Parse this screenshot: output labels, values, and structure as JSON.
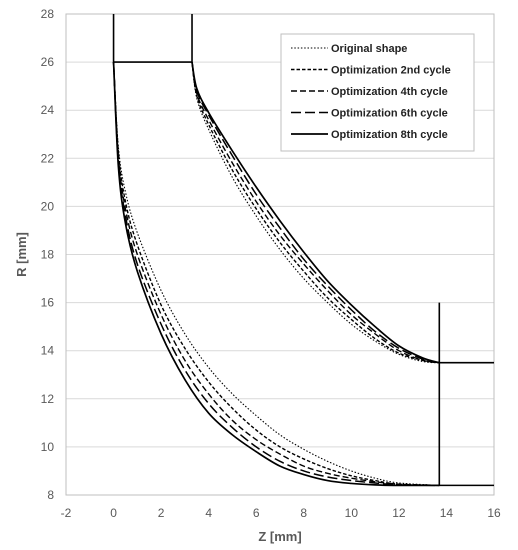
{
  "chart_data": {
    "type": "line",
    "xlabel": "Z [mm]",
    "ylabel": "R [mm]",
    "xlim": [
      -2,
      16
    ],
    "ylim": [
      8,
      28
    ],
    "x_ticks": [
      -2,
      0,
      2,
      4,
      6,
      8,
      10,
      12,
      14,
      16
    ],
    "y_ticks": [
      8,
      10,
      12,
      14,
      16,
      18,
      20,
      22,
      24,
      26,
      28
    ],
    "grid": "horizontal",
    "legend_position": "top-right",
    "colors": {
      "line": "#000000",
      "grid": "#d9d9d9",
      "frame": "#bfbfbf",
      "tick_text": "#595959"
    },
    "boundary": {
      "name": "",
      "segments": [
        [
          [
            0,
            28
          ],
          [
            0,
            26
          ],
          [
            3.3,
            26
          ],
          [
            3.3,
            28
          ]
        ],
        [
          [
            13.7,
            16.0
          ],
          [
            13.7,
            8.4
          ],
          [
            16,
            8.4
          ]
        ],
        [
          [
            13.7,
            13.5
          ],
          [
            16,
            13.5
          ]
        ]
      ]
    },
    "series": [
      {
        "name": "Original shape",
        "style": "dotted",
        "inner": [
          [
            0,
            26
          ],
          [
            0.2,
            22.5
          ],
          [
            0.5,
            20.6
          ],
          [
            1,
            18.9
          ],
          [
            2,
            16.5
          ],
          [
            3,
            14.7
          ],
          [
            4,
            13.3
          ],
          [
            5,
            12.2
          ],
          [
            6,
            11.3
          ],
          [
            7,
            10.5
          ],
          [
            8,
            9.9
          ],
          [
            9,
            9.4
          ],
          [
            10,
            9.0
          ],
          [
            11,
            8.7
          ],
          [
            12,
            8.5
          ],
          [
            13.7,
            8.4
          ]
        ],
        "outer": [
          [
            3.3,
            26
          ],
          [
            3.5,
            24.5
          ],
          [
            4,
            23.2
          ],
          [
            5,
            21.2
          ],
          [
            6,
            19.6
          ],
          [
            7,
            18.2
          ],
          [
            8,
            17.0
          ],
          [
            9,
            16.0
          ],
          [
            10,
            15.1
          ],
          [
            11,
            14.4
          ],
          [
            12,
            13.85
          ],
          [
            13,
            13.55
          ],
          [
            13.7,
            13.5
          ]
        ]
      },
      {
        "name": "Optimization 2nd cycle",
        "style": "short-dash",
        "inner": [
          [
            0,
            26
          ],
          [
            0.2,
            22.3
          ],
          [
            0.5,
            20.2
          ],
          [
            1,
            18.4
          ],
          [
            2,
            15.9
          ],
          [
            3,
            14.1
          ],
          [
            4,
            12.7
          ],
          [
            5,
            11.6
          ],
          [
            6,
            10.7
          ],
          [
            7,
            10.0
          ],
          [
            8,
            9.5
          ],
          [
            9,
            9.1
          ],
          [
            10,
            8.8
          ],
          [
            11,
            8.6
          ],
          [
            12,
            8.45
          ],
          [
            13.7,
            8.4
          ]
        ],
        "outer": [
          [
            3.3,
            26
          ],
          [
            3.5,
            24.6
          ],
          [
            4,
            23.4
          ],
          [
            5,
            21.5
          ],
          [
            6,
            19.9
          ],
          [
            7,
            18.5
          ],
          [
            8,
            17.3
          ],
          [
            9,
            16.2
          ],
          [
            10,
            15.3
          ],
          [
            11,
            14.5
          ],
          [
            12,
            13.9
          ],
          [
            13,
            13.6
          ],
          [
            13.7,
            13.5
          ]
        ]
      },
      {
        "name": "Optimization 4th cycle",
        "style": "medium-dash",
        "inner": [
          [
            0,
            26
          ],
          [
            0.2,
            22.1
          ],
          [
            0.5,
            19.9
          ],
          [
            1,
            18.0
          ],
          [
            2,
            15.5
          ],
          [
            3,
            13.6
          ],
          [
            4,
            12.2
          ],
          [
            5,
            11.1
          ],
          [
            6,
            10.3
          ],
          [
            7,
            9.7
          ],
          [
            8,
            9.2
          ],
          [
            9,
            8.9
          ],
          [
            10,
            8.7
          ],
          [
            11,
            8.55
          ],
          [
            12,
            8.45
          ],
          [
            13.7,
            8.4
          ]
        ],
        "outer": [
          [
            3.3,
            26
          ],
          [
            3.5,
            24.7
          ],
          [
            4,
            23.6
          ],
          [
            5,
            21.8
          ],
          [
            6,
            20.2
          ],
          [
            7,
            18.8
          ],
          [
            8,
            17.6
          ],
          [
            9,
            16.5
          ],
          [
            10,
            15.5
          ],
          [
            11,
            14.7
          ],
          [
            12,
            14.0
          ],
          [
            13,
            13.6
          ],
          [
            13.7,
            13.5
          ]
        ]
      },
      {
        "name": "Optimization 6th cycle",
        "style": "long-dash",
        "inner": [
          [
            0,
            26
          ],
          [
            0.2,
            21.9
          ],
          [
            0.5,
            19.6
          ],
          [
            1,
            17.6
          ],
          [
            2,
            15.1
          ],
          [
            3,
            13.2
          ],
          [
            4,
            11.8
          ],
          [
            5,
            10.8
          ],
          [
            6,
            10.0
          ],
          [
            7,
            9.4
          ],
          [
            8,
            9.0
          ],
          [
            9,
            8.75
          ],
          [
            10,
            8.6
          ],
          [
            11,
            8.5
          ],
          [
            12,
            8.42
          ],
          [
            13.7,
            8.4
          ]
        ],
        "outer": [
          [
            3.3,
            26
          ],
          [
            3.5,
            24.8
          ],
          [
            4,
            23.8
          ],
          [
            5,
            22.1
          ],
          [
            6,
            20.5
          ],
          [
            7,
            19.1
          ],
          [
            8,
            17.8
          ],
          [
            9,
            16.7
          ],
          [
            10,
            15.7
          ],
          [
            11,
            14.8
          ],
          [
            12,
            14.1
          ],
          [
            13,
            13.65
          ],
          [
            13.7,
            13.5
          ]
        ]
      },
      {
        "name": "Optimization 8th cycle",
        "style": "solid",
        "inner": [
          [
            0,
            26
          ],
          [
            0.2,
            21.7
          ],
          [
            0.5,
            19.3
          ],
          [
            1,
            17.3
          ],
          [
            2,
            14.7
          ],
          [
            3,
            12.8
          ],
          [
            4,
            11.4
          ],
          [
            5,
            10.5
          ],
          [
            6,
            9.8
          ],
          [
            7,
            9.2
          ],
          [
            8,
            8.85
          ],
          [
            9,
            8.6
          ],
          [
            10,
            8.48
          ],
          [
            11,
            8.42
          ],
          [
            12,
            8.4
          ],
          [
            13.7,
            8.4
          ]
        ],
        "outer": [
          [
            3.3,
            26
          ],
          [
            3.5,
            24.9
          ],
          [
            4,
            23.9
          ],
          [
            5,
            22.3
          ],
          [
            6,
            20.8
          ],
          [
            7,
            19.4
          ],
          [
            8,
            18.1
          ],
          [
            9,
            16.9
          ],
          [
            10,
            15.9
          ],
          [
            11,
            15.0
          ],
          [
            12,
            14.2
          ],
          [
            13,
            13.7
          ],
          [
            13.7,
            13.5
          ]
        ]
      }
    ]
  }
}
